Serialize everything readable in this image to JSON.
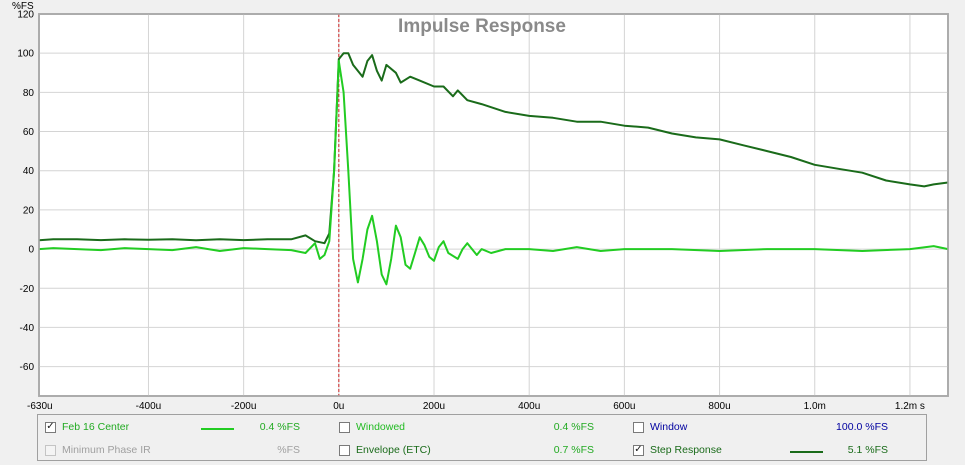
{
  "chart_data": {
    "type": "line",
    "title": "Impulse Response",
    "ylabel": "%FS",
    "xlabel": "",
    "xlim": [
      -0.00063,
      0.00128
    ],
    "ylim": [
      -75,
      120
    ],
    "x_tick_labels": [
      "-630u",
      "-400u",
      "-200u",
      "0u",
      "200u",
      "400u",
      "600u",
      "800u",
      "1.0m",
      "1.2m s"
    ],
    "x_tick_values": [
      -0.00063,
      -0.0004,
      -0.0002,
      0,
      0.0002,
      0.0004,
      0.0006,
      0.0008,
      0.001,
      0.0012
    ],
    "y_ticks": [
      120,
      100,
      80,
      60,
      40,
      20,
      0,
      -20,
      -40,
      -60
    ],
    "grid": true,
    "marker_x": 0,
    "series": [
      {
        "name": "Step Response",
        "color": "#1a6b1a",
        "points": [
          [
            -0.00063,
            4.5
          ],
          [
            -0.0006,
            5
          ],
          [
            -0.00055,
            5
          ],
          [
            -0.0005,
            4.6
          ],
          [
            -0.00045,
            5
          ],
          [
            -0.0004,
            4.8
          ],
          [
            -0.00035,
            5
          ],
          [
            -0.0003,
            4.5
          ],
          [
            -0.00025,
            5
          ],
          [
            -0.0002,
            4.6
          ],
          [
            -0.00015,
            5
          ],
          [
            -0.0001,
            5
          ],
          [
            -7e-05,
            7
          ],
          [
            -5e-05,
            4
          ],
          [
            -3e-05,
            3
          ],
          [
            -2e-05,
            8
          ],
          [
            -1e-05,
            40
          ],
          [
            0,
            97
          ],
          [
            1e-05,
            100
          ],
          [
            2e-05,
            100
          ],
          [
            3e-05,
            94
          ],
          [
            5e-05,
            88
          ],
          [
            6e-05,
            96
          ],
          [
            7e-05,
            99
          ],
          [
            8e-05,
            91
          ],
          [
            9e-05,
            86
          ],
          [
            0.0001,
            94
          ],
          [
            0.00012,
            90
          ],
          [
            0.00013,
            85
          ],
          [
            0.00015,
            88
          ],
          [
            0.00017,
            86
          ],
          [
            0.0002,
            83
          ],
          [
            0.00022,
            83
          ],
          [
            0.00024,
            78
          ],
          [
            0.00025,
            81
          ],
          [
            0.00027,
            76
          ],
          [
            0.0003,
            74
          ],
          [
            0.00035,
            70
          ],
          [
            0.0004,
            68
          ],
          [
            0.00045,
            67
          ],
          [
            0.0005,
            65
          ],
          [
            0.00055,
            65
          ],
          [
            0.0006,
            63
          ],
          [
            0.00065,
            62
          ],
          [
            0.0007,
            59
          ],
          [
            0.00075,
            57
          ],
          [
            0.0008,
            56
          ],
          [
            0.00085,
            53
          ],
          [
            0.0009,
            50
          ],
          [
            0.00095,
            47
          ],
          [
            0.001,
            43
          ],
          [
            0.00105,
            41
          ],
          [
            0.0011,
            39
          ],
          [
            0.00115,
            35
          ],
          [
            0.0012,
            33
          ],
          [
            0.00123,
            32
          ],
          [
            0.00125,
            33
          ],
          [
            0.00128,
            34
          ]
        ]
      },
      {
        "name": "Feb 16 Center",
        "color": "#22cc22",
        "points": [
          [
            -0.00063,
            0
          ],
          [
            -0.0006,
            0.5
          ],
          [
            -0.00055,
            0
          ],
          [
            -0.0005,
            -0.5
          ],
          [
            -0.00045,
            0.5
          ],
          [
            -0.0004,
            0
          ],
          [
            -0.00035,
            -0.5
          ],
          [
            -0.0003,
            1
          ],
          [
            -0.00025,
            -1
          ],
          [
            -0.0002,
            0.5
          ],
          [
            -0.00015,
            0
          ],
          [
            -0.0001,
            -0.5
          ],
          [
            -7e-05,
            -2
          ],
          [
            -5e-05,
            3
          ],
          [
            -4e-05,
            -5
          ],
          [
            -3e-05,
            -3
          ],
          [
            -2e-05,
            4
          ],
          [
            -1e-05,
            40
          ],
          [
            0,
            96
          ],
          [
            1e-05,
            80
          ],
          [
            2e-05,
            40
          ],
          [
            3e-05,
            -5
          ],
          [
            4e-05,
            -17
          ],
          [
            5e-05,
            -5
          ],
          [
            6e-05,
            10
          ],
          [
            7e-05,
            17
          ],
          [
            8e-05,
            4
          ],
          [
            9e-05,
            -13
          ],
          [
            0.0001,
            -18
          ],
          [
            0.00011,
            -5
          ],
          [
            0.00012,
            12
          ],
          [
            0.00013,
            6
          ],
          [
            0.00014,
            -8
          ],
          [
            0.00015,
            -10
          ],
          [
            0.00016,
            -2
          ],
          [
            0.00017,
            6
          ],
          [
            0.00018,
            2
          ],
          [
            0.00019,
            -4
          ],
          [
            0.0002,
            -6
          ],
          [
            0.00021,
            1
          ],
          [
            0.00022,
            4
          ],
          [
            0.00023,
            -2
          ],
          [
            0.00025,
            -5
          ],
          [
            0.00026,
            0
          ],
          [
            0.00027,
            3
          ],
          [
            0.00029,
            -3
          ],
          [
            0.0003,
            0
          ],
          [
            0.00032,
            -2
          ],
          [
            0.00035,
            0
          ],
          [
            0.0004,
            0
          ],
          [
            0.00045,
            -1
          ],
          [
            0.0005,
            1
          ],
          [
            0.00055,
            -1
          ],
          [
            0.0006,
            0
          ],
          [
            0.0007,
            0
          ],
          [
            0.0008,
            -1
          ],
          [
            0.0009,
            0
          ],
          [
            0.001,
            0
          ],
          [
            0.0011,
            -1
          ],
          [
            0.0012,
            0
          ],
          [
            0.00125,
            1.5
          ],
          [
            0.00128,
            0
          ]
        ]
      }
    ]
  },
  "yunit": "%FS",
  "legend": {
    "row1": [
      {
        "label": "Feb 16 Center",
        "checked": true,
        "enabled": true,
        "label_color": "#22aa22",
        "swatch": "#22cc22",
        "value": "0.4 %FS",
        "value_color": "#22aa22"
      },
      {
        "label": "Windowed",
        "checked": false,
        "enabled": true,
        "label_color": "#22bb22",
        "value": "0.4 %FS",
        "value_color": "#22aa22"
      },
      {
        "label": "Window",
        "checked": false,
        "enabled": true,
        "label_color": "#0000a0",
        "value": "100.0 %FS",
        "value_color": "#0000a0"
      }
    ],
    "row2": [
      {
        "label": "Minimum Phase IR",
        "checked": false,
        "enabled": false,
        "label_color": "#a0a0a0",
        "value": "%FS",
        "value_color": "#a0a0a0"
      },
      {
        "label": "Envelope (ETC)",
        "checked": false,
        "enabled": true,
        "label_color": "#1a6b1a",
        "value": "0.7 %FS",
        "value_color": "#22aa22"
      },
      {
        "label": "Step Response",
        "checked": true,
        "enabled": true,
        "label_color": "#1a6b1a",
        "swatch": "#1a6b1a",
        "value": "5.1 %FS",
        "value_color": "#1a6b1a"
      }
    ]
  }
}
